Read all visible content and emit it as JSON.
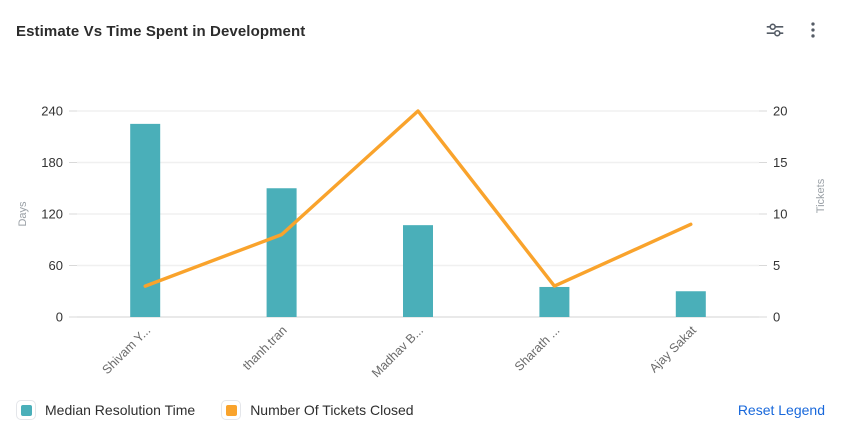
{
  "header": {
    "title": "Estimate Vs Time Spent in Development",
    "filter_icon": "sliders-icon",
    "menu_icon": "kebab-menu-icon",
    "icon_color": "#555c66"
  },
  "chart_data": {
    "type": "bar+line combo",
    "categories": [
      "Shivam Y...",
      "thanh.tran",
      "Madhav B...",
      "Sharath ...",
      "Ajay Sakat"
    ],
    "series": [
      {
        "name": "Median Resolution Time",
        "type": "bar",
        "axis": "left",
        "color": "#4aafb9",
        "values": [
          225,
          150,
          107,
          35,
          30
        ]
      },
      {
        "name": "Number Of Tickets Closed",
        "type": "line",
        "axis": "right",
        "color": "#f9a32c",
        "values": [
          3,
          8,
          20,
          3,
          9
        ]
      }
    ],
    "left_axis": {
      "label": "Days",
      "min": 0,
      "max": 240,
      "ticks": [
        0,
        60,
        120,
        180,
        240
      ]
    },
    "right_axis": {
      "label": "Tickets",
      "min": 0,
      "max": 20,
      "ticks": [
        0,
        5,
        10,
        15,
        20
      ]
    },
    "grid": true,
    "grid_color": "#f0f0f0",
    "axis_line_color": "#e9e9e9",
    "tick_label_color": "#333333",
    "axis_name_color": "#9aa0a6",
    "x_label_color": "#6b6b6b",
    "legend_position": "bottom"
  },
  "legend": {
    "items": [
      {
        "label": "Median Resolution Time",
        "color": "#4aafb9"
      },
      {
        "label": "Number Of Tickets Closed",
        "color": "#f9a32c"
      }
    ],
    "reset_label": "Reset Legend",
    "reset_color": "#1868db"
  }
}
